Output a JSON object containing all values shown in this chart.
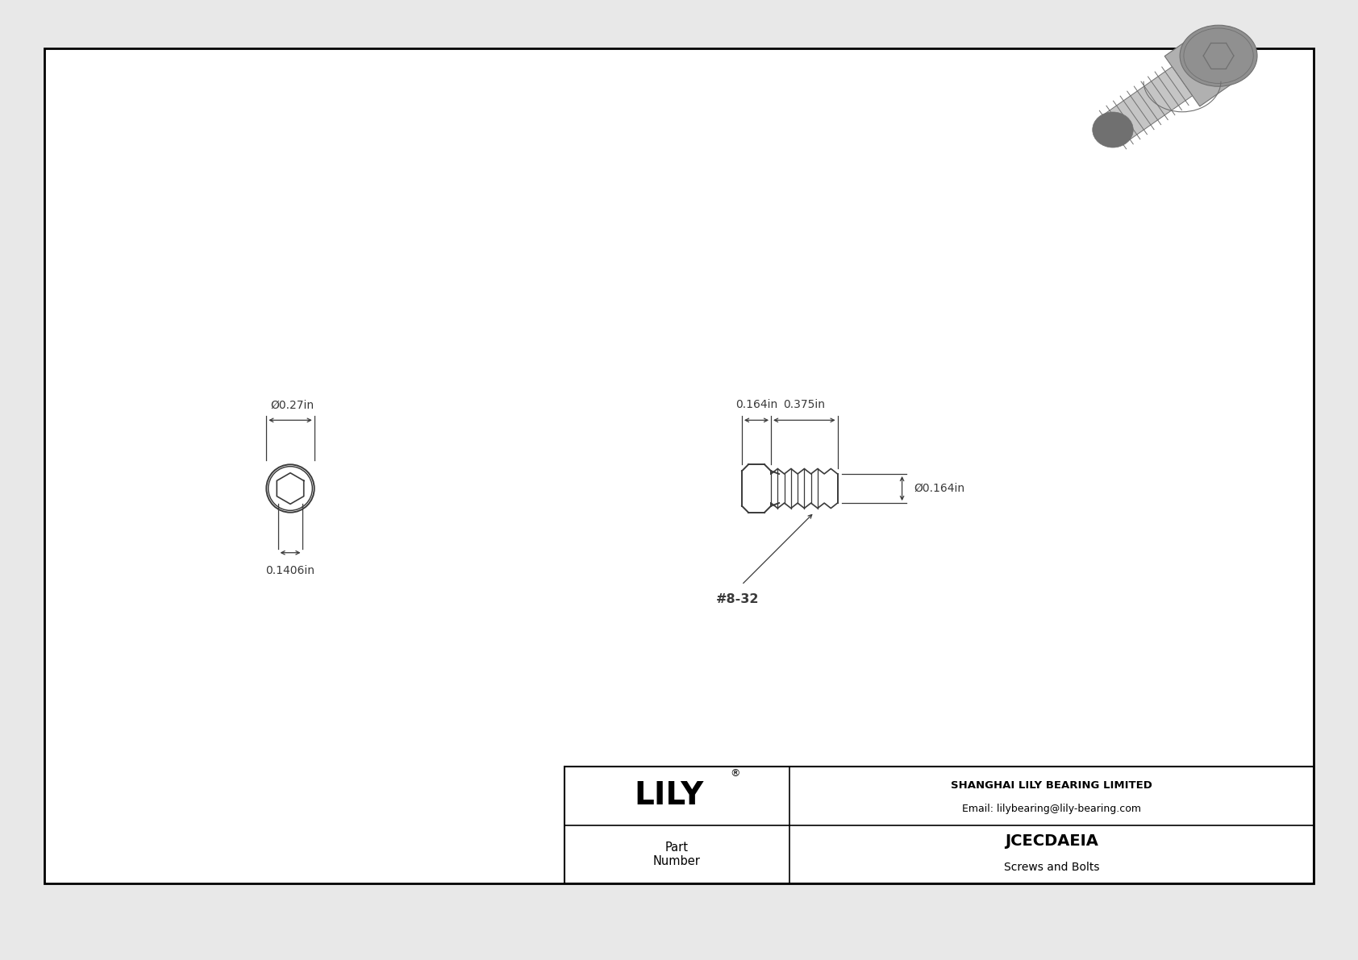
{
  "bg_color": "#e8e8e8",
  "drawing_bg": "#ffffff",
  "border_color": "#000000",
  "line_color": "#3a3a3a",
  "dim_color": "#3a3a3a",
  "title_company": "SHANGHAI LILY BEARING LIMITED",
  "title_email": "Email: lilybearing@lily-bearing.com",
  "part_number": "JCECDAEIA",
  "part_category": "Screws and Bolts",
  "part_label": "Part\nNumber",
  "brand": "LILY",
  "dim_head_diameter": "Ø0.27in",
  "dim_socket_diameter": "0.1406in",
  "dim_head_length": "0.164in",
  "dim_shank_length": "0.375in",
  "dim_shank_diameter": "Ø0.164in",
  "thread_label": "#8-32"
}
